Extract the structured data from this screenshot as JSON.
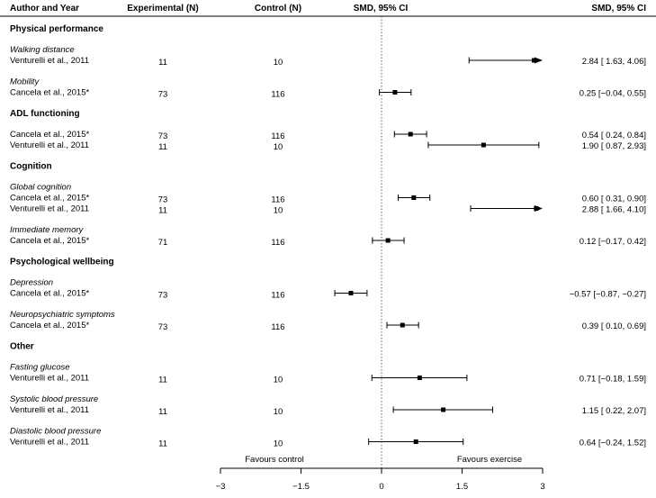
{
  "chart_data": {
    "type": "forest",
    "headers": {
      "author": "Author and Year",
      "experimental": "Experimental (N)",
      "control": "Control (N)",
      "smd_plot": "SMD, 95% CI",
      "smd_text": "SMD, 95% CI"
    },
    "sections": [
      {
        "title": "Physical performance",
        "groups": [
          {
            "subtitle": "Walking distance",
            "rows": [
              {
                "author": "Venturelli et al., 2011",
                "exp": "11",
                "ctrl": "10",
                "smd": 2.84,
                "lo": 1.63,
                "hi": 4.06,
                "ci_text": "2.84 [ 1.63,  4.06]"
              }
            ]
          },
          {
            "subtitle": "Mobility",
            "rows": [
              {
                "author": "Cancela et al., 2015*",
                "exp": "73",
                "ctrl": "116",
                "smd": 0.25,
                "lo": -0.04,
                "hi": 0.55,
                "ci_text": "0.25 [−0.04,  0.55]"
              }
            ]
          }
        ]
      },
      {
        "title": "ADL functioning",
        "groups": [
          {
            "subtitle": "",
            "rows": [
              {
                "author": "Cancela et al., 2015*",
                "exp": "73",
                "ctrl": "116",
                "smd": 0.54,
                "lo": 0.24,
                "hi": 0.84,
                "ci_text": "0.54 [ 0.24,  0.84]"
              },
              {
                "author": "Venturelli et al., 2011",
                "exp": "11",
                "ctrl": "10",
                "smd": 1.9,
                "lo": 0.87,
                "hi": 2.93,
                "ci_text": "1.90 [ 0.87,  2.93]"
              }
            ]
          }
        ]
      },
      {
        "title": "Cognition",
        "groups": [
          {
            "subtitle": "Global cognition",
            "rows": [
              {
                "author": "Cancela et al., 2015*",
                "exp": "73",
                "ctrl": "116",
                "smd": 0.6,
                "lo": 0.31,
                "hi": 0.9,
                "ci_text": "0.60 [ 0.31,  0.90]"
              },
              {
                "author": "Venturelli et al., 2011",
                "exp": "11",
                "ctrl": "10",
                "smd": 2.88,
                "lo": 1.66,
                "hi": 4.1,
                "ci_text": "2.88 [ 1.66,  4.10]"
              }
            ]
          },
          {
            "subtitle": "Immediate memory",
            "rows": [
              {
                "author": "Cancela et al., 2015*",
                "exp": "71",
                "ctrl": "116",
                "smd": 0.12,
                "lo": -0.17,
                "hi": 0.42,
                "ci_text": "0.12 [−0.17,  0.42]"
              }
            ]
          }
        ]
      },
      {
        "title": "Psychological wellbeing",
        "groups": [
          {
            "subtitle": "Depression",
            "rows": [
              {
                "author": "Cancela et al., 2015*",
                "exp": "73",
                "ctrl": "116",
                "smd": -0.57,
                "lo": -0.87,
                "hi": -0.27,
                "ci_text": "−0.57 [−0.87, −0.27]"
              }
            ]
          },
          {
            "subtitle": "Neuropsychiatric symptoms",
            "rows": [
              {
                "author": "Cancela et al., 2015*",
                "exp": "73",
                "ctrl": "116",
                "smd": 0.39,
                "lo": 0.1,
                "hi": 0.69,
                "ci_text": "0.39 [ 0.10,  0.69]"
              }
            ]
          }
        ]
      },
      {
        "title": "Other",
        "groups": [
          {
            "subtitle": "Fasting glucose",
            "rows": [
              {
                "author": "Venturelli et al., 2011",
                "exp": "11",
                "ctrl": "10",
                "smd": 0.71,
                "lo": -0.18,
                "hi": 1.59,
                "ci_text": "0.71 [−0.18,  1.59]"
              }
            ]
          },
          {
            "subtitle": "Systolic blood pressure",
            "rows": [
              {
                "author": "Venturelli et al., 2011",
                "exp": "11",
                "ctrl": "10",
                "smd": 1.15,
                "lo": 0.22,
                "hi": 2.07,
                "ci_text": "1.15 [ 0.22,  2.07]"
              }
            ]
          },
          {
            "subtitle": "Diastolic blood pressure",
            "rows": [
              {
                "author": "Venturelli et al., 2011",
                "exp": "11",
                "ctrl": "10",
                "smd": 0.64,
                "lo": -0.24,
                "hi": 1.52,
                "ci_text": "0.64 [−0.24,  1.52]"
              }
            ]
          }
        ]
      }
    ],
    "axis": {
      "xlim": [
        -3,
        3
      ],
      "ticks": [
        -3,
        -1.5,
        0,
        1.5,
        3
      ],
      "tick_labels": [
        "−3",
        "−1.5",
        "0",
        "1.5",
        "3"
      ],
      "reference_line": 0
    },
    "annotations": {
      "left": "Favours control",
      "right": "Favours exercise"
    }
  }
}
